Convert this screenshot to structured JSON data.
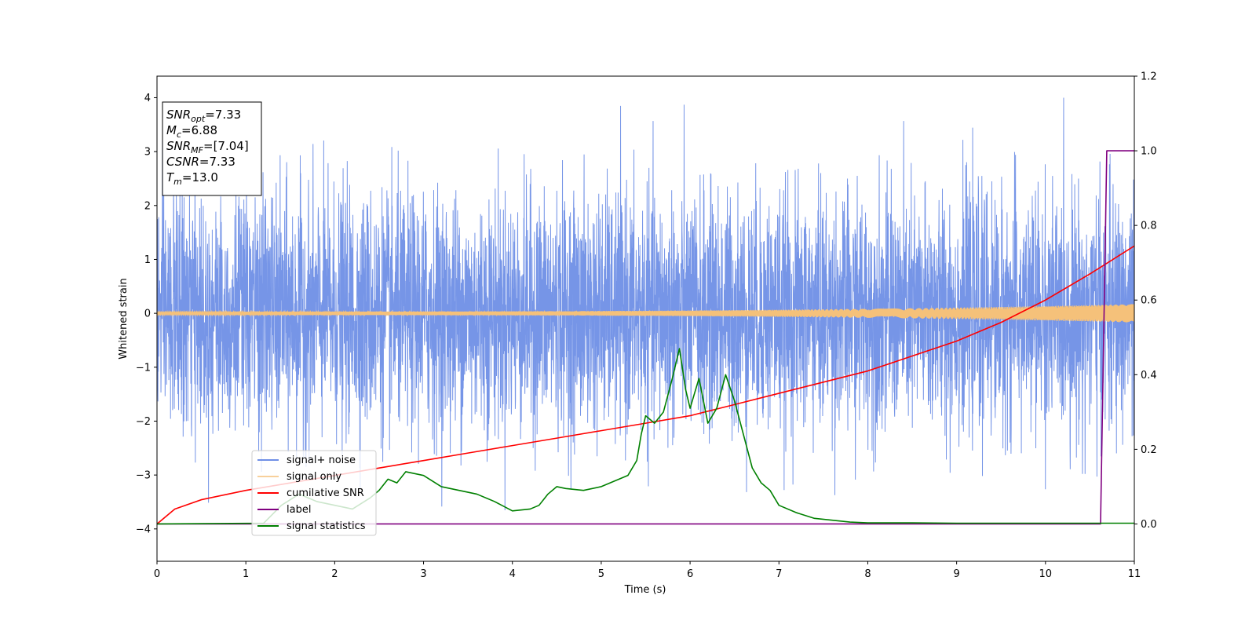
{
  "chart_data": {
    "type": "line",
    "xlabel": "Time (s)",
    "ylabel": "Whitened strain",
    "xlim": [
      0,
      11
    ],
    "ylim": [
      -4.6,
      4.4
    ],
    "y2lim": [
      -0.1,
      1.2
    ],
    "x_ticks": [
      "0",
      "1",
      "2",
      "3",
      "4",
      "5",
      "6",
      "7",
      "8",
      "9",
      "10",
      "11"
    ],
    "y_ticks": [
      "−4",
      "−3",
      "−2",
      "−1",
      "0",
      "1",
      "2",
      "3",
      "4"
    ],
    "y2_ticks": [
      "0.0",
      "0.2",
      "0.4",
      "0.6",
      "0.8",
      "1.0",
      "1.2"
    ],
    "grid": false,
    "legend_position": "lower-left",
    "colors": {
      "noise": "#6f8fe6",
      "signal": "#f5c17a",
      "csnr": "#ff0000",
      "label": "#800080",
      "stat": "#008000"
    },
    "info_box": [
      {
        "main": "SNR",
        "sub": "opt",
        "value": "=7.33"
      },
      {
        "main": "M",
        "sub": "c",
        "value": "=6.88"
      },
      {
        "main": "SNR",
        "sub": "MF",
        "value": "=[7.04]"
      },
      {
        "main": "CSNR",
        "sub": "",
        "value": "=7.33"
      },
      {
        "main": "T",
        "sub": "m",
        "value": "=13.0"
      }
    ],
    "series": [
      {
        "name": "signal+ noise",
        "axis": "left",
        "kind": "noise",
        "std": 1.0,
        "peak_range": [
          -3.7,
          4.0
        ]
      },
      {
        "name": "signal only",
        "axis": "left",
        "kind": "chirp",
        "amplitude_start": 0.03,
        "amplitude_end": 0.17
      },
      {
        "name": "cumilative SNR",
        "axis": "right",
        "x": [
          0,
          0.2,
          0.5,
          1,
          1.5,
          2,
          2.5,
          3,
          3.5,
          4,
          4.5,
          5,
          5.5,
          6,
          6.5,
          7,
          7.5,
          8,
          8.5,
          9,
          9.5,
          10,
          10.5,
          11
        ],
        "y": [
          0.0,
          0.04,
          0.065,
          0.09,
          0.11,
          0.13,
          0.15,
          0.17,
          0.19,
          0.21,
          0.23,
          0.25,
          0.27,
          0.29,
          0.32,
          0.35,
          0.38,
          0.41,
          0.45,
          0.49,
          0.54,
          0.6,
          0.67,
          0.745
        ]
      },
      {
        "name": "label",
        "axis": "right",
        "x": [
          0,
          10.62,
          10.69,
          11
        ],
        "y": [
          0.0,
          0.0,
          1.0,
          1.0
        ]
      },
      {
        "name": "signal statistics",
        "axis": "right",
        "x": [
          0,
          1.2,
          1.4,
          1.6,
          1.8,
          2.0,
          2.2,
          2.4,
          2.5,
          2.6,
          2.7,
          2.8,
          2.9,
          3.0,
          3.2,
          3.4,
          3.6,
          3.8,
          4.0,
          4.2,
          4.3,
          4.4,
          4.5,
          4.6,
          4.8,
          5.0,
          5.2,
          5.3,
          5.4,
          5.45,
          5.5,
          5.6,
          5.7,
          5.8,
          5.88,
          5.95,
          6.0,
          6.1,
          6.2,
          6.3,
          6.4,
          6.5,
          6.6,
          6.7,
          6.8,
          6.9,
          7.0,
          7.2,
          7.4,
          7.6,
          7.8,
          8.0,
          8.5,
          9.0,
          10.0,
          11.0
        ],
        "y": [
          0.0,
          0.002,
          0.05,
          0.08,
          0.06,
          0.05,
          0.04,
          0.07,
          0.09,
          0.12,
          0.11,
          0.14,
          0.135,
          0.13,
          0.1,
          0.09,
          0.08,
          0.06,
          0.035,
          0.04,
          0.05,
          0.08,
          0.1,
          0.095,
          0.09,
          0.1,
          0.12,
          0.13,
          0.17,
          0.24,
          0.29,
          0.27,
          0.3,
          0.39,
          0.47,
          0.36,
          0.31,
          0.39,
          0.27,
          0.31,
          0.4,
          0.33,
          0.24,
          0.15,
          0.11,
          0.09,
          0.05,
          0.03,
          0.015,
          0.01,
          0.005,
          0.003,
          0.003,
          0.002,
          0.002,
          0.002
        ]
      }
    ]
  }
}
